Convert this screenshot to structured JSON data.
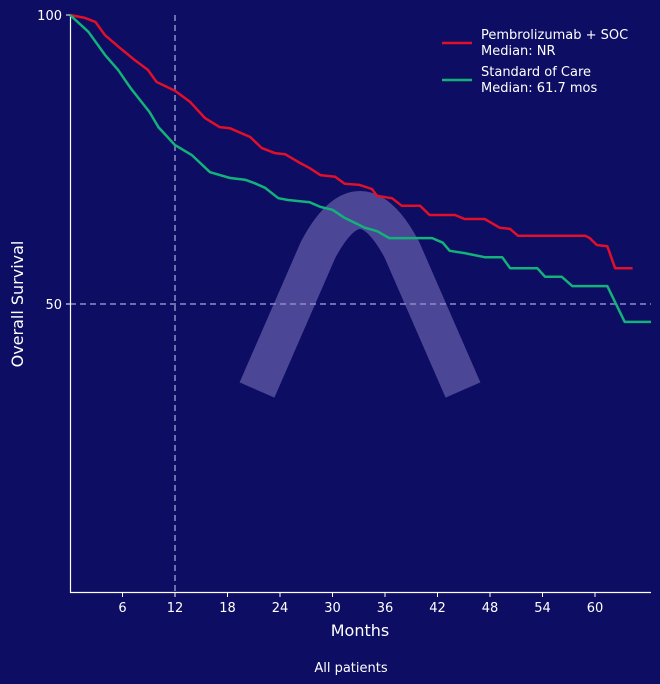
{
  "chart_data": {
    "type": "line",
    "title": "",
    "xlabel": "Months",
    "ylabel": "Overall Survival",
    "caption": "All patients",
    "xlim": [
      0,
      66.4
    ],
    "ylim": [
      0,
      100
    ],
    "xticks": [
      6,
      12,
      18,
      24,
      30,
      36,
      42,
      48,
      54,
      60
    ],
    "yticks": [
      50,
      100
    ],
    "reference_lines": {
      "x": 12,
      "y": 50
    },
    "legend_position": "top-right",
    "series": [
      {
        "name": "Pembrolizumab + SOC",
        "median_label": "Median: NR",
        "color": "#e0102a",
        "x": [
          0,
          1.7,
          2.9,
          4,
          5.7,
          7.4,
          8.9,
          9.9,
          12,
          13.7,
          15.4,
          17.1,
          18.3,
          20.6,
          21.9,
          23.4,
          24.6,
          26.3,
          27.4,
          28.6,
          30.3,
          31.4,
          33.1,
          34.5,
          35.1,
          36.8,
          37.9,
          40,
          41.1,
          44,
          45.1,
          47.4,
          49.1,
          50.3,
          51.2,
          58.9,
          59.4,
          60.2,
          61.4,
          62.3,
          64.3
        ],
        "y": [
          100,
          99.5,
          98.8,
          96.5,
          94.3,
          92.2,
          90.5,
          88.4,
          86.9,
          85,
          82.2,
          80.6,
          80.4,
          78.9,
          77,
          76.1,
          75.9,
          74.4,
          73.5,
          72.3,
          72,
          70.8,
          70.6,
          69.9,
          68.7,
          68.3,
          67,
          67,
          65.4,
          65.4,
          64.7,
          64.7,
          63.2,
          63,
          61.8,
          61.8,
          61.4,
          60.2,
          60,
          56.2,
          56.2
        ]
      },
      {
        "name": "Standard of Care",
        "median_label": "Median: 61.7 mos",
        "color": "#12b27a",
        "x": [
          0,
          2.1,
          4,
          5.5,
          6.9,
          8,
          9.1,
          10.1,
          12,
          13.9,
          16,
          18.3,
          20,
          21.1,
          22.3,
          23.8,
          24.9,
          27.4,
          28.6,
          30,
          31.4,
          33.7,
          35.1,
          36.5,
          41.4,
          42.6,
          43.4,
          45.1,
          47.4,
          49.4,
          50.3,
          53.4,
          54.3,
          56.2,
          57.4,
          61.4,
          63.4,
          66.4
        ],
        "y": [
          100,
          97.1,
          93.1,
          90.5,
          87.4,
          85.3,
          83.2,
          80.6,
          77.5,
          75.8,
          72.8,
          71.8,
          71.5,
          70.9,
          70.1,
          68.3,
          68,
          67.6,
          66.8,
          66.3,
          64.9,
          63.2,
          62.6,
          61.4,
          61.4,
          60.6,
          59.2,
          58.8,
          58.1,
          58.1,
          56.2,
          56.2,
          54.7,
          54.7,
          53.1,
          53.1,
          46.9,
          46.9
        ]
      }
    ]
  }
}
